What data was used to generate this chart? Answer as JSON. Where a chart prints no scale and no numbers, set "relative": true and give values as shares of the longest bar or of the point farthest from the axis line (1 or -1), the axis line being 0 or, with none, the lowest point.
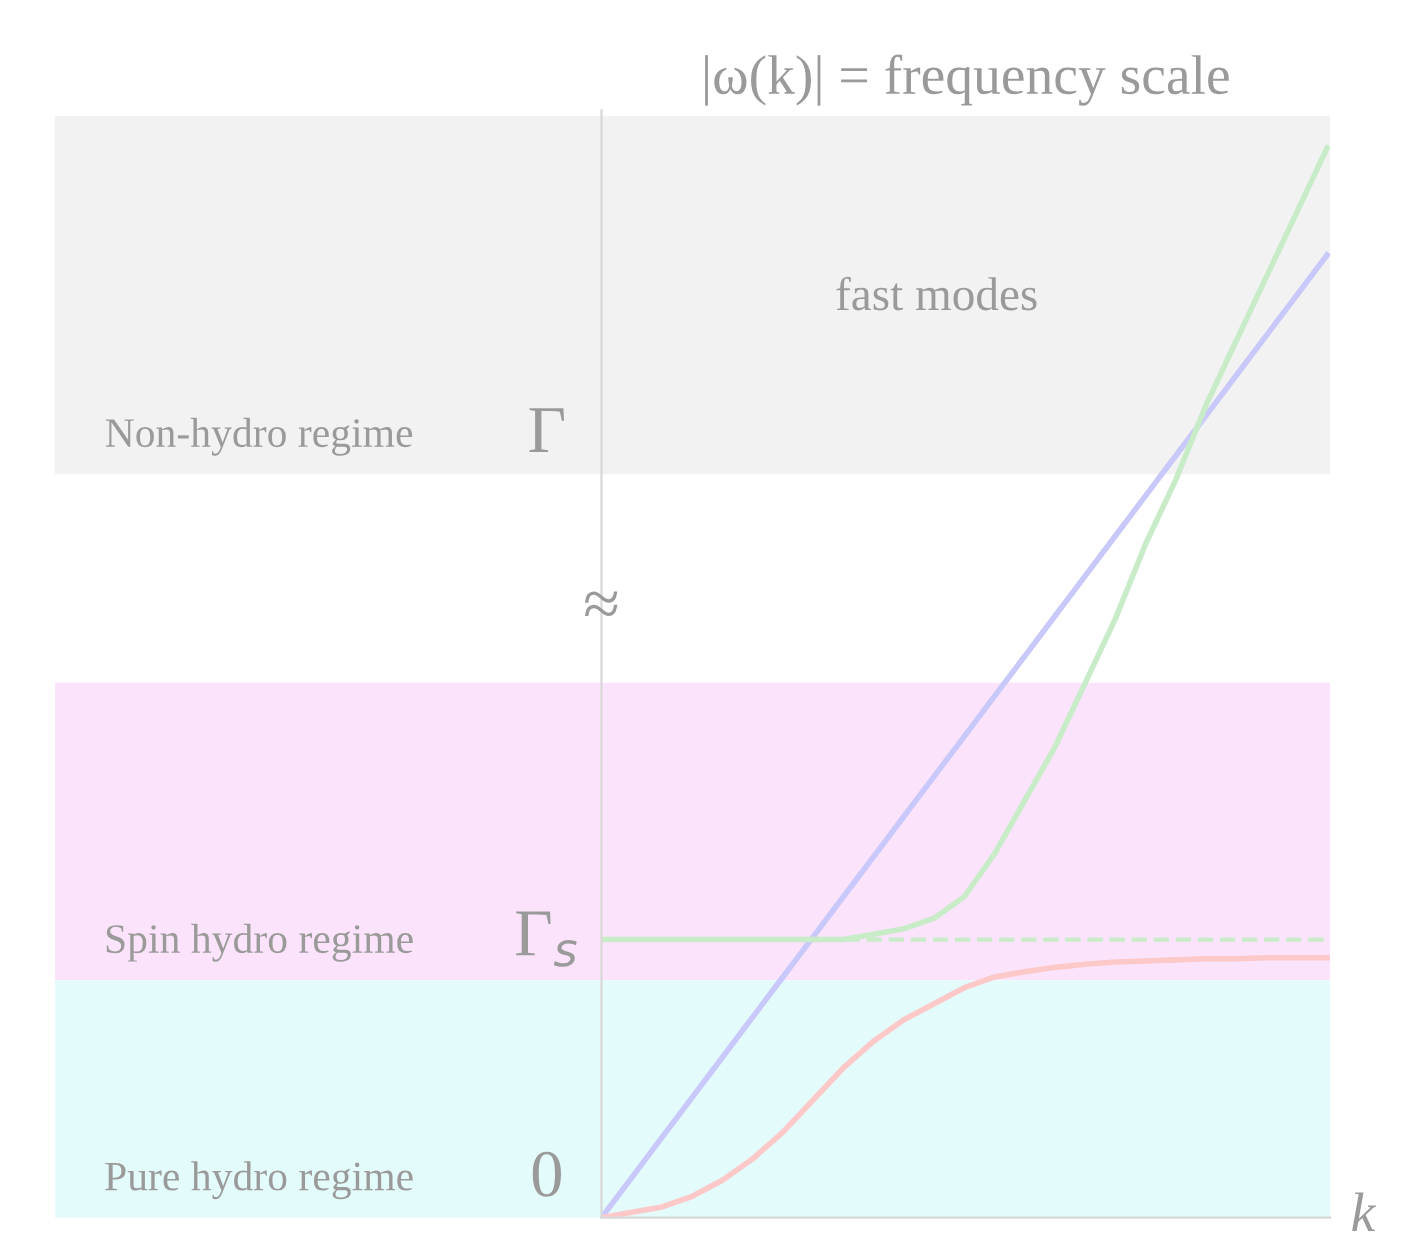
{
  "chart_data": {
    "type": "line",
    "relative": true,
    "title": "|ω(k)| = frequency scale",
    "xlabel": "k",
    "categories": [
      null,
      null,
      null,
      null,
      null,
      null,
      null,
      null,
      null,
      null,
      null,
      null,
      null,
      null,
      null,
      null,
      null,
      null,
      null,
      null,
      null,
      null,
      null,
      null,
      null
    ],
    "series": [
      {
        "color": "#c8c8fa",
        "values": [
          0,
          0.0375,
          0.075,
          0.1125,
          0.15,
          0.1875,
          0.225,
          0.2625,
          0.3,
          0.3375,
          0.375,
          0.4125,
          0.45,
          0.4875,
          0.525,
          0.5625,
          0.6,
          0.6375,
          0.675,
          0.7125,
          0.75,
          0.7875,
          0.825,
          0.8625,
          0.9
        ]
      },
      {
        "color": "#c8ecc8",
        "values": [
          0.26,
          0.26,
          0.26,
          0.26,
          0.26,
          0.26,
          0.26,
          0.26,
          0.26,
          0.265,
          0.27,
          0.28,
          0.3,
          0.34,
          0.39,
          0.44,
          0.5,
          0.56,
          0.63,
          0.69,
          0.76,
          0.82,
          0.88,
          0.94,
          1.0
        ]
      },
      {
        "color": "#fcc8c8",
        "values": [
          0,
          0.005,
          0.01,
          0.02,
          0.035,
          0.055,
          0.08,
          0.11,
          0.14,
          0.165,
          0.185,
          0.2,
          0.215,
          0.225,
          0.23,
          0.234,
          0.237,
          0.239,
          0.24,
          0.241,
          0.242,
          0.242,
          0.243,
          0.243,
          0.243
        ]
      }
    ],
    "ref_lines": [
      {
        "axis": "y",
        "value": 0.26,
        "color": "#c8ecc8",
        "line_style": "dashed",
        "label": "Γ$_{s}$"
      }
    ],
    "bands": [
      {
        "axis": "y",
        "from": 0.695,
        "to": 1.03,
        "label": "Non-hydro regime",
        "color": "#f2f2f2"
      },
      {
        "axis": "y",
        "from": 0.222,
        "to": 0.5,
        "label": "Spin hydro regime",
        "color": "#fbe4fb"
      },
      {
        "axis": "y",
        "from": 0,
        "to": 0.222,
        "label": "Pure hydro regime",
        "color": "#e4fbfb"
      }
    ],
    "annotations": [
      "Γ",
      "0",
      "≈",
      "fast modes"
    ],
    "legend": false,
    "marker": "none",
    "line_style": "solid"
  }
}
